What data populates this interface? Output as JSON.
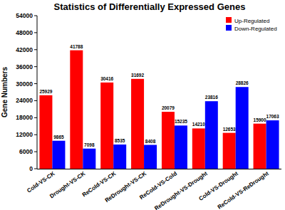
{
  "chart_data": {
    "type": "bar",
    "title": "Statistics of Differentially Expressed Genes",
    "y_label": "Gene Numbers",
    "categories": [
      "Cold-VS-CK",
      "Drought-VS-CK",
      "ReCold-VS-CK",
      "ReDrought-VS-CK",
      "ReCold-VS-Cold",
      "ReDrought-VS-Drought",
      "Cold-VS-Drought",
      "ReCold-VS-ReDrought"
    ],
    "series": [
      {
        "name": "Up-Regulated",
        "color": "#ff0000",
        "values": [
          25929,
          41788,
          30416,
          31692,
          20079,
          14210,
          12653,
          15900
        ]
      },
      {
        "name": "Down-Regulated",
        "color": "#0000ff",
        "values": [
          9865,
          7098,
          8535,
          8408,
          15235,
          23816,
          28826,
          17063
        ]
      }
    ],
    "ylim": [
      0,
      54000
    ],
    "yticks": [
      0,
      6000,
      12000,
      18000,
      24000,
      30000,
      36000,
      42000,
      48000,
      54000
    ],
    "grid": false,
    "legend": "top-right",
    "data_labels": true
  }
}
